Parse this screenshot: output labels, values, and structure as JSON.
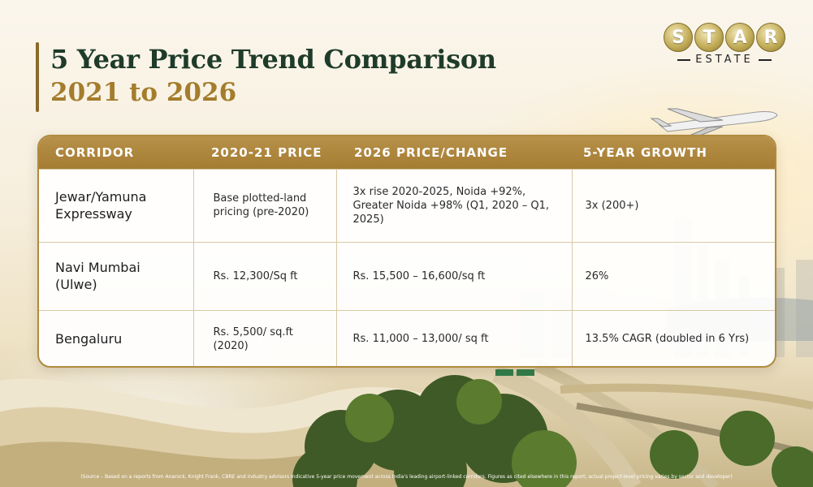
{
  "title": {
    "line1": "5 Year Price Trend Comparison",
    "line2": "2021 to 2026"
  },
  "logo": {
    "letters": [
      "S",
      "T",
      "A",
      "R"
    ],
    "subtitle": "ESTATE"
  },
  "table": {
    "headers": [
      "CORRIDOR",
      "2020-21 PRICE",
      "2026 PRICE/CHANGE",
      "5-YEAR GROWTH"
    ],
    "rows": [
      {
        "corridor": "Jewar/Yamuna Expressway",
        "price_2020_21": "Base plotted-land pricing (pre-2020)",
        "price_2026_change": "3x rise 2020-2025, Noida +92%, Greater Noida +98% (Q1, 2020 – Q1, 2025)",
        "growth": "3x (200+)"
      },
      {
        "corridor": "Navi Mumbai (Ulwe)",
        "price_2020_21": "Rs. 12,300/Sq ft",
        "price_2026_change": "Rs. 15,500 – 16,600/sq ft",
        "growth": "26%"
      },
      {
        "corridor": "Bengaluru",
        "price_2020_21": "Rs. 5,500/ sq.ft (2020)",
        "price_2026_change": "Rs. 11,000 – 13,000/ sq ft",
        "growth": "13.5% CAGR (doubled in 6 Yrs)"
      }
    ]
  },
  "source": "(Source – Based on a reports from Anarock, Knight Frank, CBRE and industry advisors Indicative 5-year price movement across India's leading airport-linked corridors. Figures as cited elsewhere in this report; actual project-level pricing varies by sector and developer)",
  "colors": {
    "title_dark": "#1f3b2a",
    "title_gold": "#a47d2c",
    "header_gold": "#b8914a"
  }
}
